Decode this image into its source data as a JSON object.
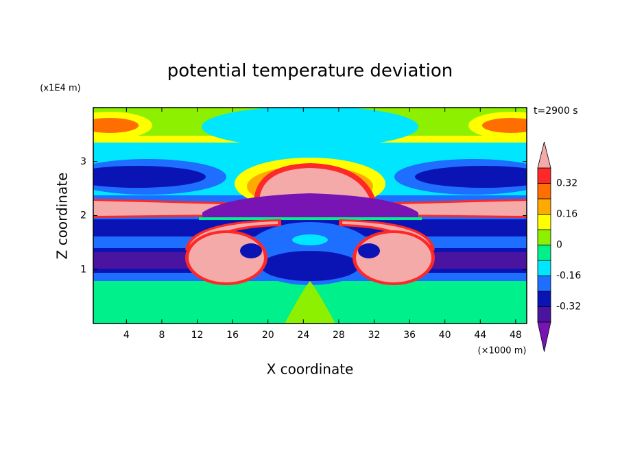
{
  "chart_data": {
    "type": "contour",
    "title": "potential temperature deviation",
    "xlabel": "X coordinate",
    "ylabel": "Z coordinate",
    "x_unit_label": "(×1000 m)",
    "y_unit_label": "(x1E4 m)",
    "annotation": "t=2900 s",
    "xlim": [
      0.25,
      49.25
    ],
    "xticks": [
      4,
      8,
      12,
      16,
      20,
      24,
      28,
      32,
      36,
      40,
      44,
      48
    ],
    "ylim": [
      0,
      4
    ],
    "yticks": [
      1,
      2,
      3
    ],
    "colorbar": {
      "levels": [
        -0.4,
        -0.32,
        -0.24,
        -0.16,
        -0.08,
        0,
        0.08,
        0.16,
        0.24,
        0.32,
        0.4
      ],
      "ticks": [
        -0.32,
        -0.16,
        0,
        0.16,
        0.32
      ],
      "colors": [
        "#4b14a0",
        "#0a14b4",
        "#1e6eff",
        "#00e6ff",
        "#00f08c",
        "#8cf000",
        "#ffff00",
        "#ffaa00",
        "#ff6e00",
        "#ff2828"
      ],
      "under_color": "#7814b4",
      "over_color": "#f5aaaa"
    }
  }
}
